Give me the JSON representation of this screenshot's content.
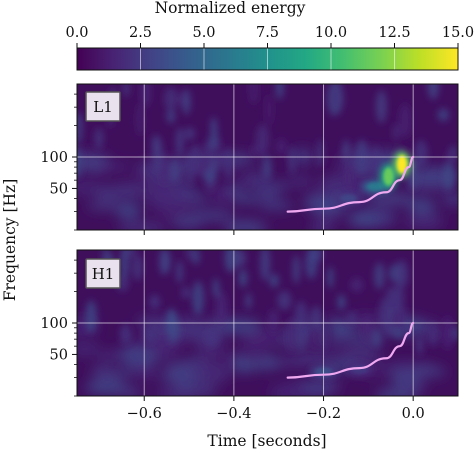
{
  "chart_data": {
    "type": "heatmap",
    "colorbar": {
      "title": "Normalized energy",
      "range": [
        0,
        15
      ],
      "ticks": [
        0.0,
        2.5,
        5.0,
        7.5,
        10.0,
        12.5,
        15.0
      ],
      "tick_labels": [
        "0.0",
        "2.5",
        "5.0",
        "7.5",
        "10.0",
        "12.5",
        "15.0"
      ],
      "colormap": "viridis"
    },
    "xlabel": "Time [seconds]",
    "ylabel": "Frequency [Hz]",
    "xlim": [
      -0.75,
      0.1
    ],
    "ylim": [
      20,
      500
    ],
    "y_scale": "log",
    "grid": true,
    "x_ticks": [
      -0.6,
      -0.4,
      -0.2,
      0.0
    ],
    "x_tick_labels": [
      "−0.6",
      "−0.4",
      "−0.2",
      "0.0"
    ],
    "y_ticks": [
      50,
      100
    ],
    "y_tick_labels": [
      "50",
      "100"
    ],
    "panels": [
      {
        "name": "L1",
        "track": [
          [
            -0.28,
            30
          ],
          [
            -0.2,
            32
          ],
          [
            -0.12,
            37
          ],
          [
            -0.06,
            46
          ],
          [
            -0.03,
            60
          ],
          [
            -0.01,
            80
          ],
          [
            0.0,
            100
          ]
        ],
        "hotspots": [
          {
            "t": -0.025,
            "f": 85,
            "energy": 15.0
          },
          {
            "t": -0.055,
            "f": 65,
            "energy": 11.5
          },
          {
            "t": -0.085,
            "f": 52,
            "energy": 6.0
          },
          {
            "t": -0.145,
            "f": 40,
            "energy": 3.0
          }
        ]
      },
      {
        "name": "H1",
        "track": [
          [
            -0.28,
            30
          ],
          [
            -0.2,
            32
          ],
          [
            -0.12,
            37
          ],
          [
            -0.06,
            46
          ],
          [
            -0.03,
            60
          ],
          [
            -0.01,
            80
          ],
          [
            0.0,
            100
          ]
        ],
        "hotspots": [
          {
            "t": -0.2,
            "f": 34,
            "energy": 3.5
          },
          {
            "t": -0.12,
            "f": 36,
            "energy": 2.5
          }
        ]
      }
    ],
    "track_color": "#f0a8f0"
  }
}
